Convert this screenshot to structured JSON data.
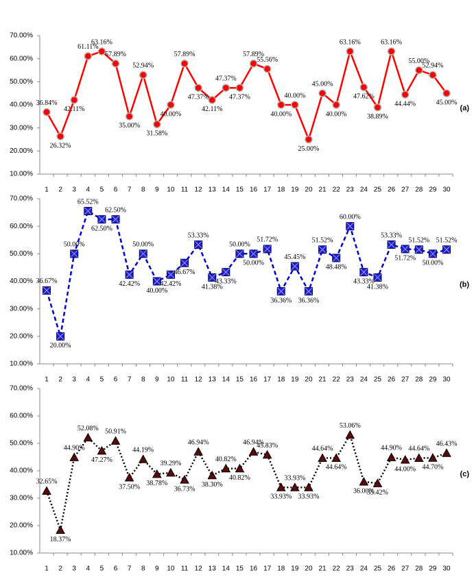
{
  "chart_data": [
    {
      "type": "line",
      "label": "(a)",
      "color": "#ff0000",
      "marker_color": "#ff0000",
      "marker_edge": "#b0b0b0",
      "line_style": "solid",
      "marker": "circle",
      "categories": [
        "1",
        "2",
        "3",
        "4",
        "5",
        "6",
        "7",
        "8",
        "9",
        "10",
        "11",
        "12",
        "13",
        "14",
        "15",
        "16",
        "17",
        "18",
        "19",
        "20",
        "21",
        "22",
        "23",
        "24",
        "25",
        "26",
        "27",
        "28",
        "29",
        "30"
      ],
      "values": [
        36.84,
        26.32,
        42.11,
        61.11,
        63.16,
        57.89,
        35.0,
        52.94,
        31.58,
        40.0,
        57.89,
        47.37,
        42.11,
        47.37,
        47.37,
        57.89,
        55.56,
        40.0,
        40.0,
        25.0,
        45.0,
        40.0,
        63.16,
        47.62,
        38.89,
        63.16,
        44.44,
        55.0,
        52.94,
        45.0
      ],
      "value_labels": [
        "36.84%",
        "26.32%",
        "42.11%",
        "61.11%",
        "63.16%",
        "57.89%",
        "35.00%",
        "52.94%",
        "31.58%",
        "40.00%",
        "57.89%",
        "47.37%",
        "42.11%",
        "47.37%",
        "47.37%",
        "57.89%",
        "55.56%",
        "40.00%",
        "40.00%",
        "25.00%",
        "45.00%",
        "40.00%",
        "63.16%",
        "47.62%",
        "38.89%",
        "63.16%",
        "44.44%",
        "55.00%",
        "52.94%",
        "45.00%"
      ],
      "ylim": [
        10,
        70
      ],
      "yticks": [
        {
          "value": 10,
          "label": "10.00%"
        },
        {
          "value": 20,
          "label": "20.00%"
        },
        {
          "value": 30,
          "label": "30.00%"
        },
        {
          "value": 40,
          "label": "40.00%"
        },
        {
          "value": 50,
          "label": "50.00%"
        },
        {
          "value": 60,
          "label": "60.00%"
        },
        {
          "value": 70,
          "label": "70.00%"
        }
      ]
    },
    {
      "type": "line",
      "label": "(b)",
      "color": "#0000cc",
      "marker_color": "#2020c8",
      "marker_edge": "#000066",
      "line_style": "dashed",
      "marker": "square",
      "categories": [
        "1",
        "2",
        "3",
        "4",
        "5",
        "6",
        "7",
        "8",
        "9",
        "10",
        "11",
        "12",
        "13",
        "14",
        "15",
        "16",
        "17",
        "18",
        "19",
        "20",
        "21",
        "22",
        "23",
        "24",
        "25",
        "26",
        "27",
        "28",
        "29",
        "30"
      ],
      "values": [
        36.67,
        20.0,
        50.0,
        65.52,
        62.5,
        62.5,
        42.42,
        50.0,
        40.0,
        42.42,
        46.67,
        53.33,
        41.38,
        43.33,
        50.0,
        50.0,
        51.72,
        36.36,
        45.45,
        36.36,
        51.52,
        48.48,
        60.0,
        43.33,
        41.38,
        53.33,
        51.72,
        51.52,
        50.0,
        51.52
      ],
      "value_labels": [
        "36.67%",
        "20.00%",
        "50.00%",
        "65.52%",
        "62.50%",
        "62.50%",
        "42.42%",
        "50.00%",
        "40.00%",
        "42.42%",
        "46.67%",
        "53.33%",
        "41.38%",
        "43.33%",
        "50.00%",
        "50.00%",
        "51.72%",
        "36.36%",
        "45.45%",
        "36.36%",
        "51.52%",
        "48.48%",
        "60.00%",
        "43.33%",
        "41.38%",
        "53.33%",
        "51.72%",
        "51.52%",
        "50.00%",
        "51.52%"
      ],
      "ylim": [
        10,
        70
      ],
      "yticks": [
        {
          "value": 10,
          "label": "10.00%"
        },
        {
          "value": 20,
          "label": "20.00%"
        },
        {
          "value": 30,
          "label": "30.00%"
        },
        {
          "value": 40,
          "label": "40.00%"
        },
        {
          "value": 50,
          "label": "50.00%"
        },
        {
          "value": 60,
          "label": "60.00%"
        },
        {
          "value": 70,
          "label": "70.00%"
        }
      ]
    },
    {
      "type": "line",
      "label": "(c)",
      "color": "#000000",
      "marker_color": "#5a0a0a",
      "marker_edge": "#000000",
      "line_style": "dotted",
      "marker": "triangle",
      "categories": [
        "1",
        "2",
        "3",
        "4",
        "5",
        "6",
        "7",
        "8",
        "9",
        "10",
        "11",
        "12",
        "13",
        "14",
        "15",
        "16",
        "17",
        "18",
        "19",
        "20",
        "21",
        "22",
        "23",
        "24",
        "25",
        "26",
        "27",
        "28",
        "29",
        "30"
      ],
      "values": [
        32.65,
        18.37,
        44.9,
        52.08,
        47.27,
        50.91,
        37.5,
        44.19,
        38.78,
        39.29,
        36.73,
        46.94,
        38.3,
        40.82,
        40.82,
        46.94,
        45.83,
        33.93,
        33.93,
        33.93,
        44.64,
        44.64,
        53.06,
        36.0,
        35.42,
        44.9,
        44.0,
        44.64,
        44.7,
        46.43
      ],
      "value_labels": [
        "32.65%",
        "18.37%",
        "44.90%",
        "52.08%",
        "47.27%",
        "50.91%",
        "37.50%",
        "44.19%",
        "38.78%",
        "39.29%",
        "36.73%",
        "46.94%",
        "38.30%",
        "40.82%",
        "40.82%",
        "46.94%",
        "45.83%",
        "33.93%",
        "33.93%",
        "33.93%",
        "44.64%",
        "44.64%",
        "53.06%",
        "36.00%",
        "35.42%",
        "44.90%",
        "44.00%",
        "44.64%",
        "44.70%",
        "46.43%"
      ],
      "ylim": [
        10,
        70
      ],
      "yticks": [
        {
          "value": 10,
          "label": "10.00%"
        },
        {
          "value": 20,
          "label": "20.00%"
        },
        {
          "value": 30,
          "label": "30.00%"
        },
        {
          "value": 40,
          "label": "40.00%"
        },
        {
          "value": 50,
          "label": "50.00%"
        },
        {
          "value": 60,
          "label": "60.00%"
        },
        {
          "value": 70,
          "label": "70.00%"
        }
      ]
    }
  ]
}
